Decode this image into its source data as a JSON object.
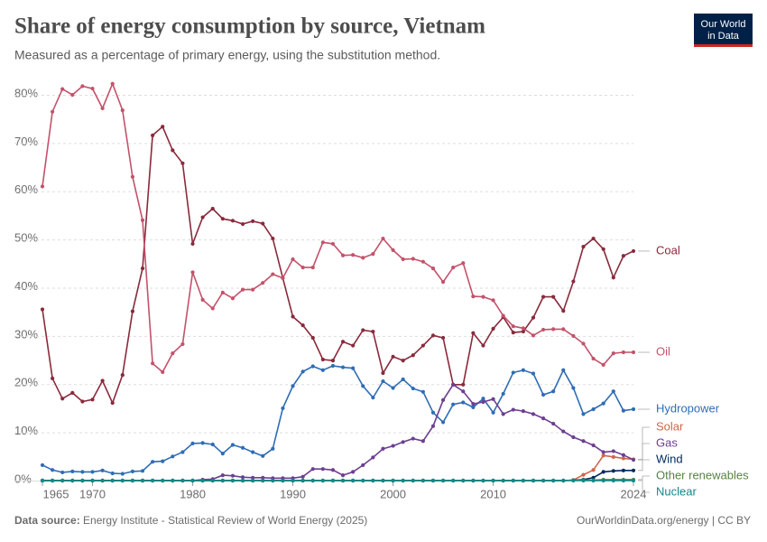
{
  "header": {
    "logo": [
      "Our World",
      "in Data"
    ]
  },
  "chart_data": {
    "type": "line",
    "title": "Share of energy consumption by source, Vietnam",
    "subtitle": "Measured as a percentage of primary energy, using the substitution method.",
    "x": [
      1965,
      1966,
      1967,
      1968,
      1969,
      1970,
      1971,
      1972,
      1973,
      1974,
      1975,
      1976,
      1977,
      1978,
      1979,
      1980,
      1981,
      1982,
      1983,
      1984,
      1985,
      1986,
      1987,
      1988,
      1989,
      1990,
      1991,
      1992,
      1993,
      1994,
      1995,
      1996,
      1997,
      1998,
      1999,
      2000,
      2001,
      2002,
      2003,
      2004,
      2005,
      2006,
      2007,
      2008,
      2009,
      2010,
      2011,
      2012,
      2013,
      2014,
      2015,
      2016,
      2017,
      2018,
      2019,
      2020,
      2021,
      2022,
      2023,
      2024
    ],
    "xlim": [
      1965,
      2024
    ],
    "xticks": [
      1965,
      1970,
      1980,
      1990,
      2000,
      2010,
      2024
    ],
    "ylim": [
      0,
      80
    ],
    "yticks": [
      {
        "value": 0,
        "label": "0%"
      },
      {
        "value": 10,
        "label": "10%"
      },
      {
        "value": 20,
        "label": "20%"
      },
      {
        "value": 30,
        "label": "30%"
      },
      {
        "value": 40,
        "label": "40%"
      },
      {
        "value": 50,
        "label": "50%"
      },
      {
        "value": 60,
        "label": "60%"
      },
      {
        "value": 70,
        "label": "70%"
      },
      {
        "value": 80,
        "label": "80%"
      }
    ],
    "grid": true,
    "series": [
      {
        "name": "Coal",
        "color": "#8a2a3c",
        "values": [
          35.5,
          21.2,
          17,
          18.2,
          16.4,
          16.8,
          20.7,
          16.1,
          21.9,
          35.1,
          44,
          71.6,
          73.4,
          68.5,
          65.8,
          49.1,
          54.6,
          56.4,
          54.3,
          53.9,
          53.2,
          53.8,
          53.3,
          50.2,
          42,
          34,
          32.2,
          29.6,
          25.1,
          24.9,
          28.8,
          28,
          31.2,
          30.9,
          22.3,
          25.7,
          24.9,
          26,
          28,
          30.1,
          29.6,
          19.9,
          19.9,
          30.6,
          28,
          31.5,
          33.9,
          30.7,
          30.9,
          33.8,
          38.1,
          38.1,
          35.2,
          41.3,
          48.5,
          50.2,
          48,
          42.1,
          46.6,
          47.6
        ]
      },
      {
        "name": "Oil",
        "color": "#c4526b",
        "values": [
          61,
          76.5,
          81.2,
          80,
          81.8,
          81.3,
          77.2,
          82.3,
          76.8,
          63,
          54,
          24.3,
          22.5,
          26.4,
          28.3,
          43.2,
          37.5,
          35.7,
          39,
          37.8,
          39.6,
          39.6,
          41,
          42.8,
          42,
          45.9,
          44.2,
          44.2,
          49.4,
          49.1,
          46.7,
          46.8,
          46.2,
          47,
          50.2,
          47.8,
          45.9,
          46,
          45.4,
          44,
          41.2,
          44.2,
          45.1,
          38.2,
          38.1,
          37.4,
          34.2,
          32,
          31.6,
          30.1,
          31.3,
          31.4,
          31.4,
          30,
          28.4,
          25.3,
          24,
          26.4,
          26.6,
          26.6
        ]
      },
      {
        "name": "Hydropower",
        "color": "#2f6db5",
        "values": [
          3.2,
          2.2,
          1.7,
          1.9,
          1.8,
          1.8,
          2.1,
          1.5,
          1.4,
          1.9,
          2,
          3.9,
          4,
          5,
          5.9,
          7.7,
          7.8,
          7.5,
          5.6,
          7.4,
          6.8,
          5.9,
          5.1,
          6.6,
          15,
          19.6,
          22.6,
          23.7,
          22.9,
          23.8,
          23.5,
          23.3,
          19.6,
          17.2,
          20.6,
          19.2,
          21,
          19.1,
          18.4,
          14.1,
          12.1,
          15.8,
          16.2,
          15.2,
          17,
          14.1,
          18,
          22.4,
          22.9,
          22.2,
          17.8,
          18.5,
          22.9,
          19.2,
          13.8,
          14.8,
          16,
          18.5,
          14.5,
          14.8
        ]
      },
      {
        "name": "Solar",
        "color": "#d0664a",
        "values": [
          0,
          0,
          0,
          0,
          0,
          0,
          0,
          0,
          0,
          0,
          0,
          0,
          0,
          0,
          0,
          0,
          0,
          0,
          0,
          0,
          0,
          0,
          0,
          0,
          0,
          0,
          0,
          0,
          0,
          0,
          0,
          0,
          0,
          0,
          0,
          0,
          0,
          0,
          0,
          0,
          0,
          0,
          0,
          0,
          0,
          0,
          0,
          0,
          0,
          0,
          0,
          0,
          0,
          0.1,
          1.2,
          2.2,
          5.2,
          4.9,
          4.6,
          4.4
        ]
      },
      {
        "name": "Gas",
        "color": "#6d3e91",
        "values": [
          0,
          0,
          0,
          0,
          0,
          0,
          0,
          0,
          0,
          0,
          0,
          0,
          0,
          0,
          0,
          0,
          0.2,
          0.3,
          1.1,
          1,
          0.7,
          0.6,
          0.6,
          0.5,
          0.5,
          0.5,
          0.8,
          2.4,
          2.4,
          2.2,
          1.1,
          1.8,
          3.2,
          4.8,
          6.6,
          7.2,
          8,
          8.7,
          8.2,
          11.3,
          16.7,
          19.9,
          18.5,
          15.9,
          16.3,
          16.9,
          13.8,
          14.7,
          14.4,
          13.8,
          12.9,
          11.8,
          10.2,
          9,
          8.2,
          7.3,
          5.9,
          6.1,
          5.3,
          4.3
        ]
      },
      {
        "name": "Wind",
        "color": "#00295b",
        "values": [
          0,
          0,
          0,
          0,
          0,
          0,
          0,
          0,
          0,
          0,
          0,
          0,
          0,
          0,
          0,
          0,
          0,
          0,
          0,
          0,
          0,
          0,
          0,
          0,
          0,
          0,
          0,
          0,
          0,
          0,
          0,
          0,
          0,
          0,
          0,
          0,
          0,
          0,
          0,
          0,
          0,
          0,
          0,
          0,
          0,
          0,
          0,
          0,
          0,
          0,
          0,
          0,
          0,
          0.1,
          0.2,
          0.6,
          1.8,
          2,
          2.1,
          2.1
        ]
      },
      {
        "name": "Other renewables",
        "color": "#578145",
        "values": [
          0,
          0,
          0,
          0,
          0,
          0,
          0,
          0,
          0,
          0,
          0,
          0,
          0,
          0,
          0,
          0,
          0,
          0,
          0,
          0,
          0,
          0,
          0,
          0,
          0,
          0,
          0,
          0,
          0,
          0,
          0,
          0,
          0,
          0,
          0,
          0,
          0,
          0,
          0,
          0,
          0,
          0,
          0,
          0,
          0,
          0,
          0,
          0,
          0,
          0,
          0,
          0,
          0,
          0.1,
          0.1,
          0.1,
          0.2,
          0.2,
          0.2,
          0.2
        ]
      },
      {
        "name": "Nuclear",
        "color": "#0f8a8a",
        "values": [
          0,
          0,
          0,
          0,
          0,
          0,
          0,
          0,
          0,
          0,
          0,
          0,
          0,
          0,
          0,
          0,
          0,
          0,
          0,
          0,
          0,
          0,
          0,
          0,
          0,
          0,
          0,
          0,
          0,
          0,
          0,
          0,
          0,
          0,
          0,
          0,
          0,
          0,
          0,
          0,
          0,
          0,
          0,
          0,
          0,
          0,
          0,
          0,
          0,
          0,
          0,
          0,
          0,
          0,
          0,
          0,
          0,
          0,
          0,
          0
        ]
      }
    ]
  },
  "footer": {
    "source_label": "Data source:",
    "source": "Energy Institute - Statistical Review of World Energy (2025)",
    "credit": "OurWorldinData.org/energy | CC BY"
  }
}
